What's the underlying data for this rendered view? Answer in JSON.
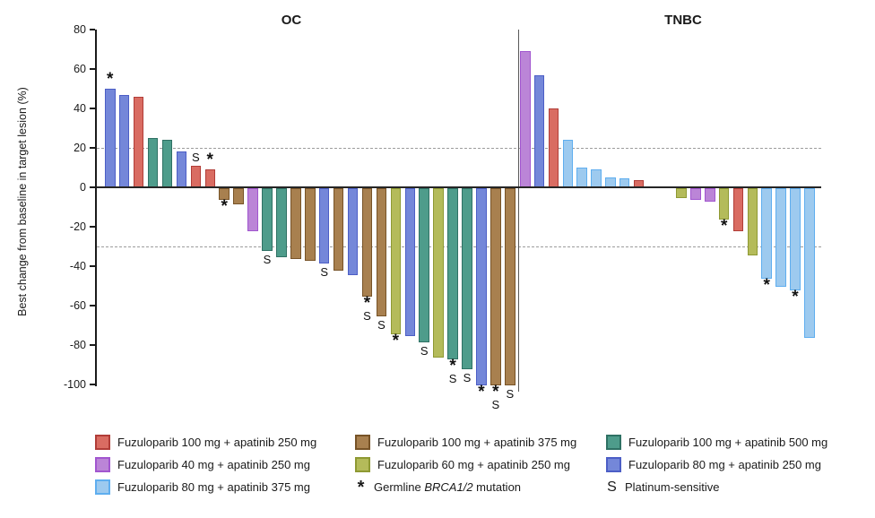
{
  "chart_data": {
    "type": "bar",
    "subtype": "waterfall",
    "title": "",
    "ylabel": "Best change from baseline in target lesion (%)",
    "ylim": [
      -100,
      80
    ],
    "yticks": [
      80,
      60,
      40,
      20,
      0,
      -20,
      -40,
      -60,
      -80,
      -100
    ],
    "reference_lines": [
      20,
      -30
    ],
    "grid": "off",
    "legend_position": "bottom",
    "groups": {
      "red": {
        "label": "Fuzuloparib 100 mg + apatinib 250 mg",
        "fill": "#D96C62",
        "border": "#B13D38"
      },
      "brown": {
        "label": "Fuzuloparib 100 mg + apatinib 375 mg",
        "fill": "#A8804F",
        "border": "#775327"
      },
      "teal": {
        "label": "Fuzuloparib 100 mg + apatinib 500 mg",
        "fill": "#4E9C8B",
        "border": "#2F7164"
      },
      "purple": {
        "label": "Fuzuloparib 40 mg + apatinib 250 mg",
        "fill": "#BB85D7",
        "border": "#A156CF"
      },
      "olive": {
        "label": "Fuzuloparib 60 mg + apatinib 250 mg",
        "fill": "#B4BB5A",
        "border": "#8E9933"
      },
      "blue": {
        "label": "Fuzuloparib 80 mg + apatinib 250 mg",
        "fill": "#7487D9",
        "border": "#4C5EC6"
      },
      "lightblue": {
        "label": "Fuzuloparib 80 mg + apatinib 375 mg",
        "fill": "#9DCAEF",
        "border": "#5FAEEF"
      }
    },
    "markers": {
      "asterisk": {
        "symbol": "*",
        "label": "Germline BRCA1/2 mutation",
        "italic_part": "BRCA1/2"
      },
      "platinum": {
        "symbol": "S",
        "label": "Platinum-sensitive"
      }
    },
    "legend_columns": [
      [
        "red",
        "purple",
        "lightblue"
      ],
      [
        "brown",
        "olive",
        "asterisk"
      ],
      [
        "teal",
        "blue",
        "platinum"
      ]
    ],
    "panels": [
      {
        "title": "OC",
        "bars": [
          {
            "v": 50,
            "g": "blue",
            "m": [
              "*"
            ]
          },
          {
            "v": 47,
            "g": "blue"
          },
          {
            "v": 46,
            "g": "red"
          },
          {
            "v": 25,
            "g": "teal"
          },
          {
            "v": 24,
            "g": "teal"
          },
          {
            "v": 18,
            "g": "blue"
          },
          {
            "v": 11,
            "g": "red",
            "m": [
              "S"
            ]
          },
          {
            "v": 9,
            "g": "red",
            "m": [
              "*"
            ]
          },
          {
            "v": -6,
            "g": "brown",
            "m": [
              "*"
            ]
          },
          {
            "v": -8,
            "g": "brown"
          },
          {
            "v": -22,
            "g": "purple"
          },
          {
            "v": -32,
            "g": "teal",
            "m": [
              "S"
            ]
          },
          {
            "v": -35,
            "g": "teal"
          },
          {
            "v": -36,
            "g": "brown"
          },
          {
            "v": -37,
            "g": "brown"
          },
          {
            "v": -38,
            "g": "blue",
            "m": [
              "S"
            ]
          },
          {
            "v": -42,
            "g": "brown"
          },
          {
            "v": -44,
            "g": "blue"
          },
          {
            "v": -55,
            "g": "brown",
            "m": [
              "*",
              "S"
            ]
          },
          {
            "v": -65,
            "g": "brown",
            "m": [
              "S"
            ]
          },
          {
            "v": -74,
            "g": "olive",
            "m": [
              "*"
            ]
          },
          {
            "v": -75,
            "g": "blue"
          },
          {
            "v": -78,
            "g": "teal",
            "m": [
              "S"
            ]
          },
          {
            "v": -86,
            "g": "olive"
          },
          {
            "v": -87,
            "g": "teal",
            "m": [
              "*",
              "S"
            ]
          },
          {
            "v": -92,
            "g": "teal",
            "m": [
              "S"
            ]
          },
          {
            "v": -100,
            "g": "blue",
            "m": [
              "*"
            ]
          },
          {
            "v": -100,
            "g": "brown",
            "m": [
              "*",
              "S"
            ]
          },
          {
            "v": -100,
            "g": "brown",
            "m": [
              "S"
            ]
          }
        ]
      },
      {
        "title": "TNBC",
        "bars": [
          {
            "v": 69,
            "g": "purple"
          },
          {
            "v": 57,
            "g": "blue"
          },
          {
            "v": 40,
            "g": "red"
          },
          {
            "v": 24,
            "g": "lightblue"
          },
          {
            "v": 10,
            "g": "lightblue"
          },
          {
            "v": 9,
            "g": "lightblue"
          },
          {
            "v": 5,
            "g": "lightblue"
          },
          {
            "v": 4.5,
            "g": "lightblue"
          },
          {
            "v": 3.5,
            "g": "red"
          },
          {
            "gap": true
          },
          {
            "gap": true
          },
          {
            "v": -5,
            "g": "olive"
          },
          {
            "v": -6,
            "g": "purple"
          },
          {
            "v": -7,
            "g": "purple"
          },
          {
            "v": -16,
            "g": "olive",
            "m": [
              "*"
            ]
          },
          {
            "v": -22,
            "g": "red"
          },
          {
            "v": -34,
            "g": "olive"
          },
          {
            "v": -46,
            "g": "lightblue",
            "m": [
              "*"
            ]
          },
          {
            "v": -50,
            "g": "lightblue"
          },
          {
            "v": -52,
            "g": "lightblue",
            "m": [
              "*"
            ]
          },
          {
            "v": -76,
            "g": "lightblue"
          }
        ]
      }
    ]
  }
}
